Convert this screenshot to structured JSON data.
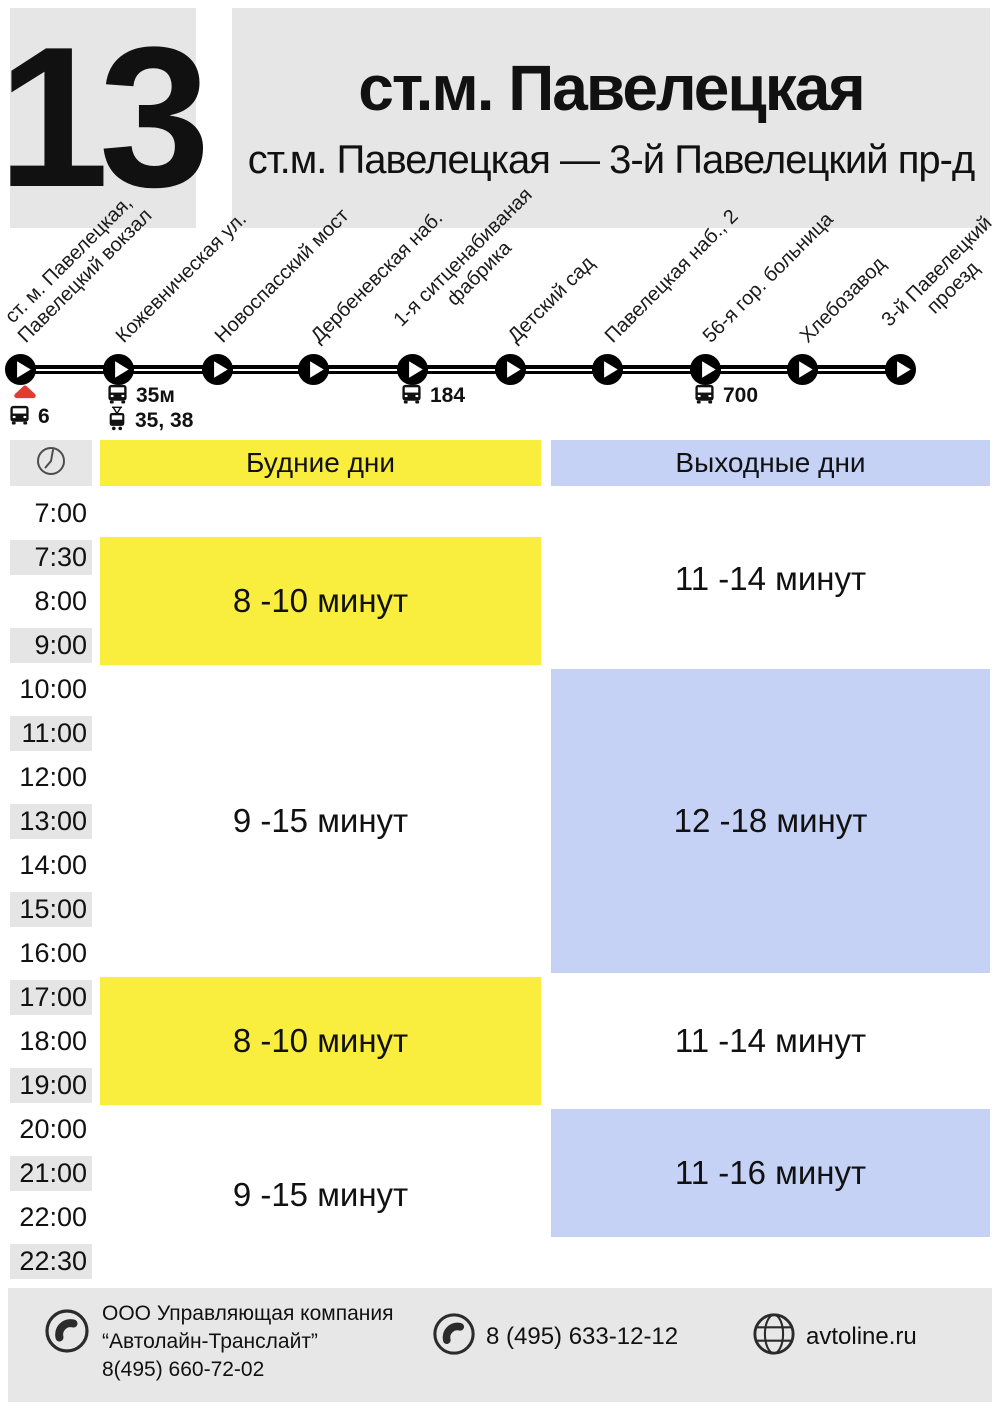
{
  "header": {
    "route_number": "13",
    "title": "ст.м. Павелецкая",
    "subtitle": "ст.м. Павелецкая — 3-й Павелецкий пр-д"
  },
  "route_map": {
    "stops": [
      {
        "label_lines": [
          "ст. м. Павелецкая,",
          "Павелецкий вокзал"
        ]
      },
      {
        "label_lines": [
          "Кожевническая ул."
        ]
      },
      {
        "label_lines": [
          "Новоспасский мост"
        ]
      },
      {
        "label_lines": [
          "Дербеневская наб."
        ]
      },
      {
        "label_lines": [
          "1-я ситценабиваная",
          "фабрика"
        ]
      },
      {
        "label_lines": [
          "Детский сад"
        ]
      },
      {
        "label_lines": [
          "Павелецкая наб., 2"
        ]
      },
      {
        "label_lines": [
          "56-я гор. больница"
        ]
      },
      {
        "label_lines": [
          "Хлебозавод"
        ]
      },
      {
        "label_lines": [
          "3-й Павелецкий",
          "проезд"
        ]
      }
    ],
    "connections": [
      {
        "stop_index": 0,
        "terminal_marker": true,
        "lines": [
          {
            "icon": "bus-icon",
            "label": "6"
          }
        ]
      },
      {
        "stop_index": 1,
        "terminal_marker": false,
        "lines": [
          {
            "icon": "bus-icon",
            "label": "35м"
          },
          {
            "icon": "tram-icon",
            "label": "35, 38"
          }
        ]
      },
      {
        "stop_index": 4,
        "terminal_marker": false,
        "lines": [
          {
            "icon": "bus-icon",
            "label": "184"
          }
        ]
      },
      {
        "stop_index": 7,
        "terminal_marker": false,
        "lines": [
          {
            "icon": "bus-icon",
            "label": "700"
          }
        ]
      }
    ]
  },
  "schedule": {
    "columns": [
      {
        "label": "Будние дни",
        "color": "#f9ee3e"
      },
      {
        "label": "Выходные дни",
        "color": "#c5d2f5"
      }
    ],
    "times": [
      "7:00",
      "7:30",
      "8:00",
      "9:00",
      "10:00",
      "11:00",
      "12:00",
      "13:00",
      "14:00",
      "15:00",
      "16:00",
      "17:00",
      "18:00",
      "19:00",
      "20:00",
      "21:00",
      "22:00",
      "22:30"
    ],
    "intervals": [
      {
        "column": 0,
        "from": "7:30",
        "to": "9:00",
        "text": "8 -10 минут",
        "filled": true
      },
      {
        "column": 1,
        "from": "7:00",
        "to": "9:00",
        "text": "11 -14 минут",
        "filled": false
      },
      {
        "column": 0,
        "from": "10:00",
        "to": "16:00",
        "text": "9 -15 минут",
        "filled": false
      },
      {
        "column": 1,
        "from": "10:00",
        "to": "16:00",
        "text": "12 -18 минут",
        "filled": true
      },
      {
        "column": 0,
        "from": "17:00",
        "to": "19:00",
        "text": "8 -10 минут",
        "filled": true
      },
      {
        "column": 1,
        "from": "17:00",
        "to": "19:00",
        "text": "11 -14 минут",
        "filled": false
      },
      {
        "column": 0,
        "from": "20:00",
        "to": "22:30",
        "text": "9 -15 минут",
        "filled": false
      },
      {
        "column": 1,
        "from": "20:00",
        "to": "22:00",
        "text": "11 -16 минут",
        "filled": true
      }
    ]
  },
  "footer": {
    "company": {
      "lines": [
        "ООО Управляющая компания",
        "“Автолайн-Транслайт”",
        "8(495) 660-72-02"
      ]
    },
    "phone": "8 (495) 633-12-12",
    "website": "avtoline.ru"
  },
  "colors": {
    "panel_gray": "#e6e6e6",
    "row_gray": "#e5e5e5",
    "weekday_yellow": "#f9ee3e",
    "weekend_blue": "#c5d2f5",
    "terminal_red": "#e23b31",
    "ink": "#111111"
  }
}
